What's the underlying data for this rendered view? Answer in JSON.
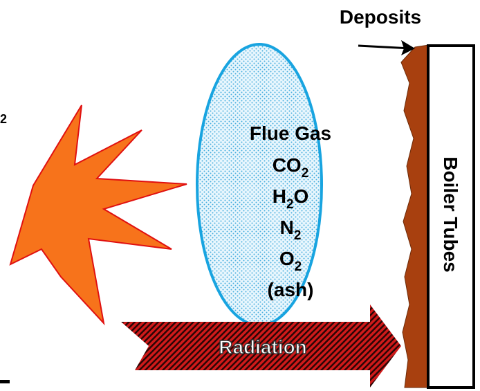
{
  "edge_fragment": "2",
  "deposits_label": "Deposits",
  "tube_label": "Boiler Tubes",
  "radiation_label": "Radiation",
  "flue_gas": {
    "title": "Flue Gas",
    "species": [
      {
        "text": "CO",
        "sub": "2"
      },
      {
        "text": "H",
        "sub": "2",
        "tail": "O"
      },
      {
        "text": "N",
        "sub": "2"
      },
      {
        "text": "O",
        "sub": "2"
      },
      {
        "text": "(ash)"
      }
    ]
  }
}
